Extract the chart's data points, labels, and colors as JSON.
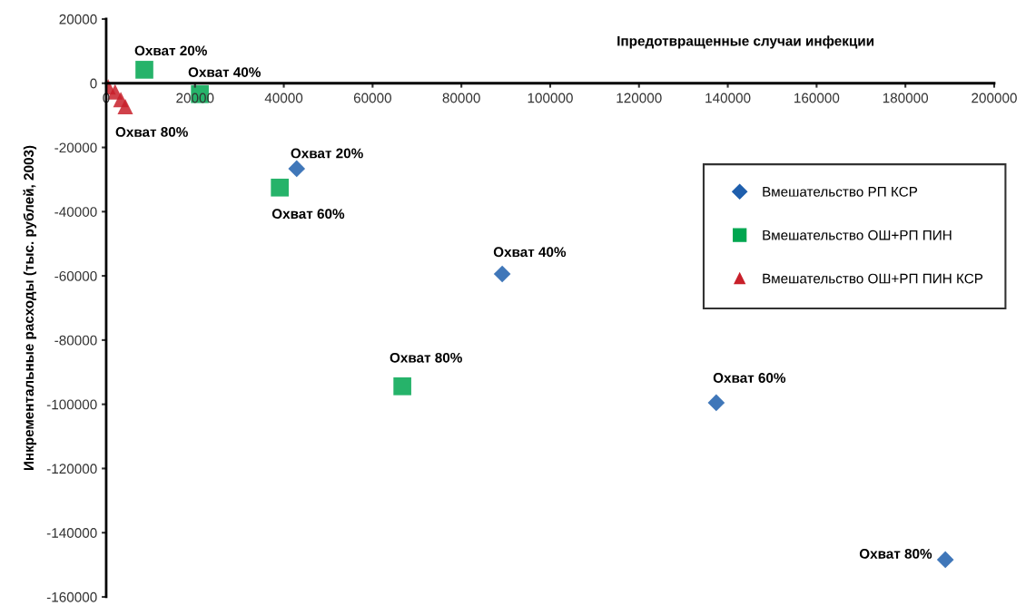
{
  "chart_data": {
    "type": "scatter",
    "xlabel": "Iпредотвращенные случаи инфекции",
    "ylabel": "Инкрементальные расходы (тыс. рублей, 2003)",
    "xlim": [
      0,
      200000
    ],
    "xticks": [
      0,
      20000,
      40000,
      60000,
      80000,
      100000,
      120000,
      140000,
      160000,
      180000,
      200000
    ],
    "ylim": [
      -160000,
      20000
    ],
    "yticks": [
      -160000,
      -140000,
      -120000,
      -100000,
      -80000,
      -60000,
      -40000,
      -20000,
      0,
      20000
    ],
    "grid": false,
    "legend": "right",
    "series": [
      {
        "name": "Вмешательство РП КСР",
        "color": "#1f5fad",
        "marker": "diamond",
        "x": [
          42900,
          89200,
          137400,
          189000
        ],
        "values": [
          -26600,
          -59400,
          -99500,
          -148400
        ]
      },
      {
        "name": "Вмешательство ОШ+РП ПИН",
        "color": "#00a650",
        "marker": "square",
        "x": [
          8600,
          21100,
          39100,
          66700
        ],
        "values": [
          4200,
          -3400,
          -32500,
          -94400
        ]
      },
      {
        "name": "Вмешательство ОШ+РП ПИН КСР",
        "color": "#c8202a",
        "marker": "triangle",
        "x": [
          450,
          2000,
          3300,
          4300
        ],
        "values": [
          -1100,
          -2700,
          -5100,
          -7300
        ]
      }
    ],
    "annotations": [
      {
        "text": "Охват 20%",
        "x": 8600,
        "y": 4200
      },
      {
        "text": "Охват 40%",
        "x": 21100,
        "y": -3400
      },
      {
        "text": "Охват 80%",
        "x": 4300,
        "y": -7300
      },
      {
        "text": "Охват 20%",
        "x": 42900,
        "y": -26600
      },
      {
        "text": "Охват 60%",
        "x": 39100,
        "y": -32500
      },
      {
        "text": "Охват 40%",
        "x": 89200,
        "y": -59400
      },
      {
        "text": "Охват 80%",
        "x": 66700,
        "y": -94400
      },
      {
        "text": "Охват 60%",
        "x": 137400,
        "y": -99500
      },
      {
        "text": "Охват 80%",
        "x": 189000,
        "y": -148400
      }
    ]
  }
}
